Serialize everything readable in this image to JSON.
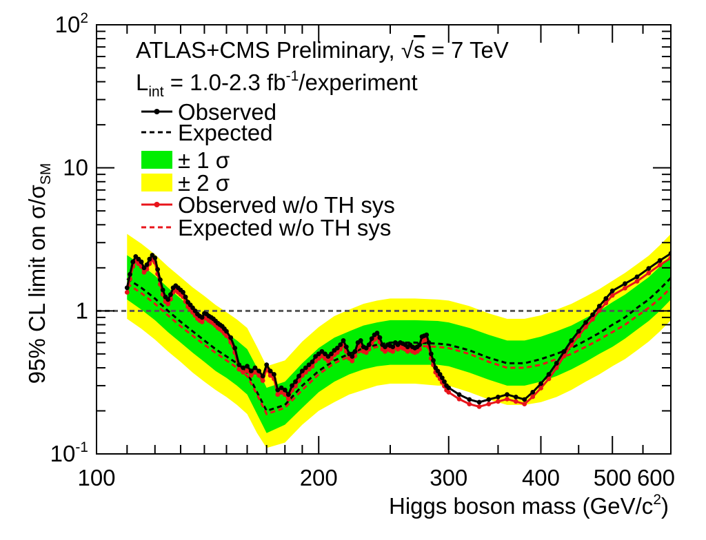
{
  "chart_data": {
    "type": "line",
    "title": "ATLAS+CMS Preliminary, √s = 7 TeV",
    "title_parts": {
      "prefix": "ATLAS+CMS Preliminary, ",
      "sqrt": "√",
      "s_var": "s",
      "suffix": " = 7 TeV"
    },
    "subtitle_parts": {
      "L": "L",
      "sub": "int",
      "mid": " = 1.0-2.3 fb",
      "sup": "-1",
      "tail": "/experiment"
    },
    "xlabel_parts": {
      "main": "Higgs boson mass (GeV/c",
      "sup": "2",
      "close": ")"
    },
    "ylabel_parts": {
      "main": "95% CL limit on σ/σ",
      "sub": "SM"
    },
    "x_scale": "log",
    "y_scale": "log",
    "xlim": [
      100,
      600
    ],
    "ylim": [
      0.1,
      100
    ],
    "x_ticks": [
      {
        "value": 100,
        "label": "100"
      },
      {
        "value": 200,
        "label": "200"
      },
      {
        "value": 300,
        "label": "300"
      },
      {
        "value": 400,
        "label": "400"
      },
      {
        "value": 500,
        "label": "500"
      },
      {
        "value": 600,
        "label": "600"
      }
    ],
    "y_ticks": [
      {
        "value": 0.1,
        "base": "10",
        "exp": "-1"
      },
      {
        "value": 1,
        "base": "1",
        "exp": ""
      },
      {
        "value": 10,
        "base": "10",
        "exp": ""
      },
      {
        "value": 100,
        "base": "10",
        "exp": "2"
      }
    ],
    "reference_line": {
      "y": 1
    },
    "legend": {
      "position": "top-left",
      "entries": [
        {
          "key": "observed",
          "label": "Observed",
          "style": "line-marker",
          "color": "#000000"
        },
        {
          "key": "expected",
          "label": "Expected",
          "style": "dashed",
          "color": "#000000"
        },
        {
          "key": "band1",
          "label": "± 1 σ",
          "style": "box",
          "color": "#00ee00"
        },
        {
          "key": "band2",
          "label": "± 2 σ",
          "style": "box",
          "color": "#ffff00"
        },
        {
          "key": "observed_noth",
          "label": "Observed w/o TH sys",
          "style": "line-marker",
          "color": "#e8141b"
        },
        {
          "key": "expected_noth",
          "label": "Expected w/o TH sys",
          "style": "dashed",
          "color": "#e8141b"
        }
      ]
    },
    "colors": {
      "band1": "#00ee00",
      "band2": "#ffff00",
      "observed": "#000000",
      "observed_noth": "#e8141b",
      "expected_noth": "#e8141b",
      "reference": "#555555"
    },
    "expected": {
      "x": [
        110,
        115,
        120,
        125,
        130,
        135,
        140,
        145,
        150,
        155,
        160,
        165,
        170,
        180,
        190,
        200,
        210,
        220,
        230,
        240,
        250,
        270,
        290,
        300,
        320,
        340,
        360,
        380,
        400,
        420,
        440,
        460,
        480,
        500,
        520,
        540,
        560,
        580,
        600
      ],
      "y": [
        1.68,
        1.45,
        1.22,
        1.0,
        0.84,
        0.72,
        0.62,
        0.54,
        0.48,
        0.43,
        0.37,
        0.27,
        0.2,
        0.22,
        0.3,
        0.38,
        0.45,
        0.5,
        0.55,
        0.58,
        0.6,
        0.6,
        0.59,
        0.58,
        0.53,
        0.47,
        0.43,
        0.43,
        0.46,
        0.5,
        0.55,
        0.62,
        0.7,
        0.8,
        0.9,
        1.05,
        1.2,
        1.42,
        1.7
      ]
    },
    "expected_noth": {
      "x": [
        110,
        115,
        120,
        125,
        130,
        135,
        140,
        145,
        150,
        155,
        160,
        165,
        170,
        180,
        190,
        200,
        210,
        220,
        230,
        240,
        250,
        270,
        290,
        300,
        320,
        340,
        360,
        380,
        400,
        420,
        440,
        460,
        480,
        500,
        520,
        540,
        560,
        580,
        600
      ],
      "y": [
        1.55,
        1.33,
        1.12,
        0.93,
        0.78,
        0.67,
        0.58,
        0.51,
        0.45,
        0.4,
        0.35,
        0.26,
        0.19,
        0.21,
        0.28,
        0.36,
        0.43,
        0.48,
        0.53,
        0.56,
        0.57,
        0.57,
        0.56,
        0.55,
        0.5,
        0.44,
        0.4,
        0.4,
        0.42,
        0.46,
        0.5,
        0.56,
        0.63,
        0.71,
        0.8,
        0.92,
        1.05,
        1.22,
        1.45
      ]
    },
    "band1": {
      "x": [
        110,
        115,
        120,
        125,
        130,
        135,
        140,
        145,
        150,
        155,
        160,
        165,
        170,
        180,
        190,
        200,
        210,
        220,
        230,
        240,
        250,
        270,
        290,
        300,
        320,
        340,
        360,
        380,
        400,
        420,
        440,
        460,
        480,
        500,
        520,
        540,
        560,
        580,
        600
      ],
      "low": [
        1.2,
        1.02,
        0.86,
        0.71,
        0.6,
        0.51,
        0.44,
        0.38,
        0.34,
        0.3,
        0.26,
        0.19,
        0.14,
        0.16,
        0.21,
        0.27,
        0.32,
        0.36,
        0.39,
        0.41,
        0.42,
        0.42,
        0.42,
        0.41,
        0.37,
        0.33,
        0.3,
        0.3,
        0.32,
        0.35,
        0.39,
        0.44,
        0.5,
        0.56,
        0.64,
        0.74,
        0.85,
        1.0,
        1.2
      ],
      "high": [
        2.45,
        2.1,
        1.76,
        1.45,
        1.22,
        1.04,
        0.9,
        0.78,
        0.7,
        0.62,
        0.54,
        0.4,
        0.29,
        0.32,
        0.43,
        0.55,
        0.65,
        0.72,
        0.79,
        0.83,
        0.86,
        0.86,
        0.85,
        0.83,
        0.76,
        0.68,
        0.62,
        0.62,
        0.66,
        0.72,
        0.79,
        0.89,
        1.0,
        1.15,
        1.3,
        1.5,
        1.72,
        2.04,
        2.45
      ]
    },
    "band2": {
      "x": [
        110,
        115,
        120,
        125,
        130,
        135,
        140,
        145,
        150,
        155,
        160,
        165,
        170,
        180,
        190,
        200,
        210,
        220,
        230,
        240,
        250,
        270,
        290,
        300,
        320,
        340,
        360,
        380,
        400,
        420,
        440,
        460,
        480,
        500,
        520,
        540,
        560,
        580,
        600
      ],
      "low": [
        0.88,
        0.75,
        0.63,
        0.52,
        0.44,
        0.37,
        0.32,
        0.28,
        0.25,
        0.22,
        0.19,
        0.14,
        0.11,
        0.12,
        0.16,
        0.2,
        0.23,
        0.26,
        0.28,
        0.3,
        0.31,
        0.31,
        0.3,
        0.3,
        0.27,
        0.24,
        0.22,
        0.22,
        0.23,
        0.25,
        0.28,
        0.32,
        0.36,
        0.41,
        0.46,
        0.53,
        0.61,
        0.72,
        0.86
      ],
      "high": [
        3.45,
        2.95,
        2.48,
        2.04,
        1.72,
        1.46,
        1.27,
        1.1,
        0.98,
        0.87,
        0.76,
        0.56,
        0.41,
        0.45,
        0.61,
        0.77,
        0.92,
        1.02,
        1.12,
        1.18,
        1.22,
        1.22,
        1.2,
        1.18,
        1.08,
        0.96,
        0.88,
        0.88,
        0.93,
        1.02,
        1.12,
        1.26,
        1.42,
        1.62,
        1.84,
        2.12,
        2.43,
        2.88,
        3.45
      ]
    },
    "observed": {
      "x": [
        110,
        111,
        112,
        113,
        114,
        115,
        116,
        117,
        118,
        119,
        120,
        121,
        122,
        123,
        124,
        125,
        126,
        127,
        128,
        129,
        130,
        131,
        132,
        133,
        134,
        135,
        136,
        137,
        138,
        139,
        140,
        141,
        142,
        143,
        144,
        145,
        146,
        147,
        148,
        149,
        150,
        152,
        154,
        156,
        158,
        160,
        162,
        164,
        166,
        168,
        170,
        172,
        174,
        176,
        178,
        180,
        182,
        184,
        186,
        188,
        190,
        192,
        194,
        196,
        198,
        200,
        202,
        204,
        206,
        208,
        210,
        212,
        214,
        216,
        218,
        220,
        222,
        224,
        226,
        228,
        230,
        232,
        234,
        236,
        238,
        240,
        242,
        244,
        246,
        248,
        250,
        252,
        254,
        256,
        258,
        260,
        262,
        264,
        266,
        268,
        270,
        272,
        274,
        276,
        278,
        280,
        282,
        284,
        286,
        288,
        290,
        292,
        294,
        296,
        298,
        300,
        310,
        320,
        330,
        340,
        350,
        360,
        370,
        380,
        390,
        400,
        410,
        420,
        430,
        440,
        450,
        460,
        470,
        480,
        490,
        500,
        520,
        540,
        560,
        580,
        600
      ],
      "y": [
        1.45,
        1.8,
        2.2,
        2.4,
        2.3,
        2.2,
        2.0,
        2.1,
        2.3,
        2.45,
        2.35,
        1.95,
        1.65,
        1.4,
        1.25,
        1.2,
        1.3,
        1.45,
        1.5,
        1.45,
        1.4,
        1.35,
        1.25,
        1.15,
        1.1,
        1.05,
        1.0,
        0.95,
        0.92,
        0.9,
        0.96,
        0.95,
        0.92,
        0.9,
        0.88,
        0.85,
        0.82,
        0.8,
        0.78,
        0.75,
        0.72,
        0.65,
        0.55,
        0.42,
        0.4,
        0.41,
        0.38,
        0.4,
        0.38,
        0.35,
        0.42,
        0.38,
        0.36,
        0.28,
        0.29,
        0.28,
        0.26,
        0.3,
        0.32,
        0.35,
        0.38,
        0.4,
        0.42,
        0.44,
        0.48,
        0.5,
        0.52,
        0.5,
        0.48,
        0.5,
        0.53,
        0.55,
        0.58,
        0.62,
        0.56,
        0.5,
        0.48,
        0.52,
        0.6,
        0.62,
        0.56,
        0.55,
        0.58,
        0.64,
        0.68,
        0.7,
        0.65,
        0.58,
        0.56,
        0.58,
        0.57,
        0.56,
        0.6,
        0.58,
        0.6,
        0.59,
        0.58,
        0.56,
        0.58,
        0.56,
        0.55,
        0.56,
        0.58,
        0.66,
        0.67,
        0.68,
        0.6,
        0.5,
        0.45,
        0.4,
        0.38,
        0.36,
        0.34,
        0.32,
        0.3,
        0.29,
        0.26,
        0.24,
        0.23,
        0.24,
        0.25,
        0.26,
        0.25,
        0.24,
        0.27,
        0.31,
        0.36,
        0.43,
        0.52,
        0.62,
        0.72,
        0.83,
        0.94,
        1.08,
        1.22,
        1.38,
        1.55,
        1.73,
        1.98,
        2.25,
        2.52
      ]
    }
  }
}
